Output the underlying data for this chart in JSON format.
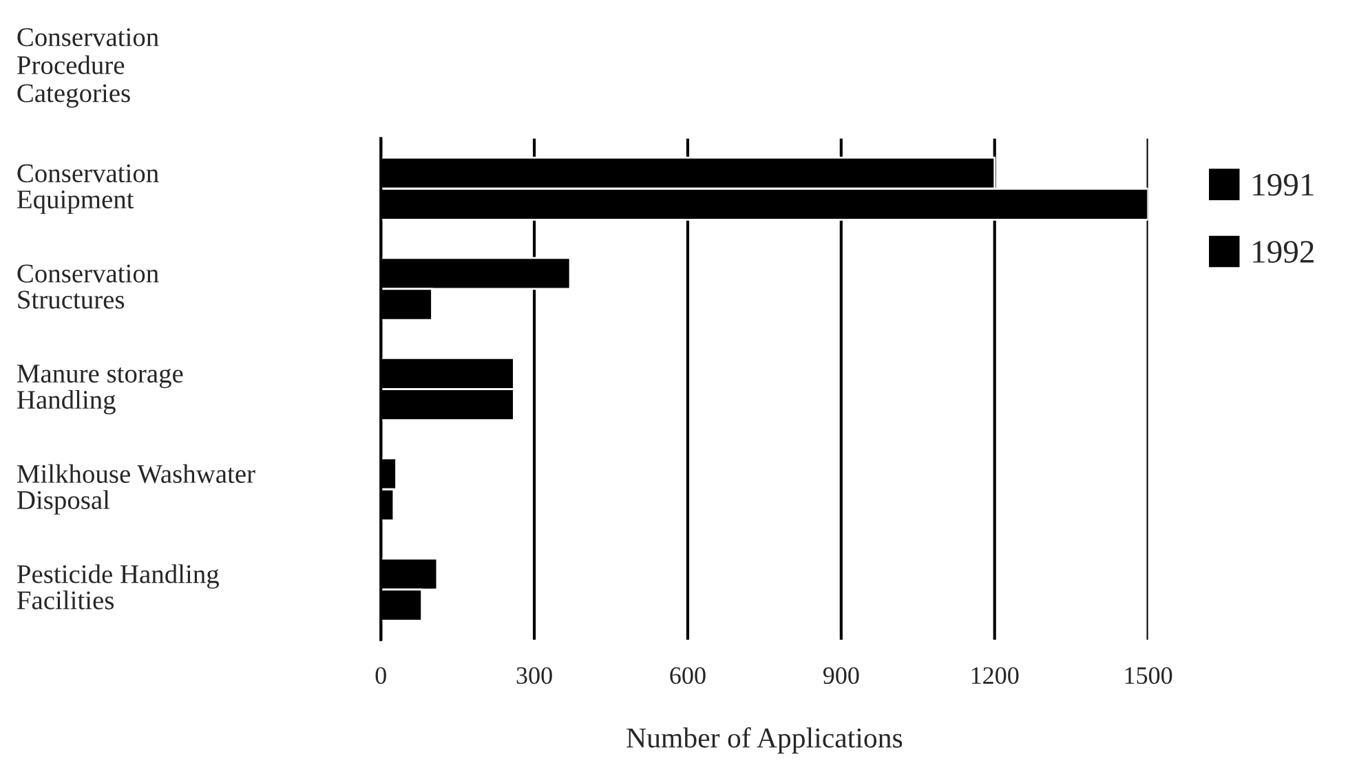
{
  "chart_data": {
    "type": "bar",
    "orientation": "horizontal",
    "ylabel": "Conservation Procedure Categories",
    "xlabel": "Number of Applications",
    "categories": [
      "Conservation Equipment",
      "Conservation Structures",
      "Manure storage Handling",
      "Milkhouse Washwater Disposal",
      "Pesticide Handling Facilities"
    ],
    "series": [
      {
        "name": "1991",
        "color": "#000000",
        "values": [
          1200,
          370,
          260,
          30,
          110
        ]
      },
      {
        "name": "1992",
        "color": "#000000",
        "values": [
          1500,
          100,
          260,
          25,
          80
        ]
      }
    ],
    "xlim": [
      0,
      1500
    ],
    "xticks": [
      0,
      300,
      600,
      900,
      1200,
      1500
    ],
    "grid": "x",
    "legend": "top right"
  }
}
